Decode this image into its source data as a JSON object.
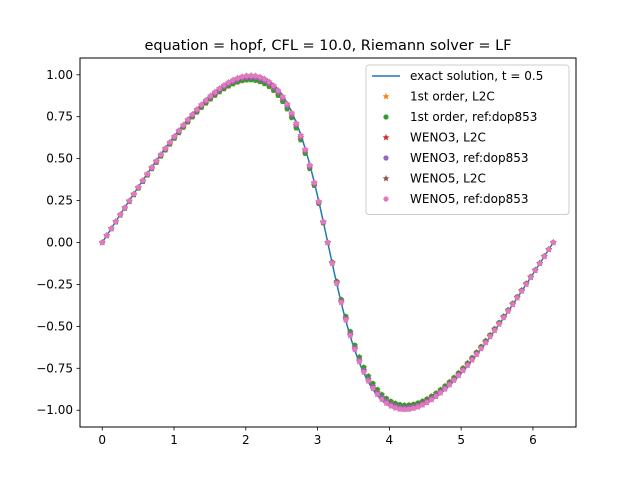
{
  "chart_data": {
    "type": "line",
    "title": "equation = hopf, CFL = 10.0, Riemann solver = LF",
    "xlabel": "",
    "ylabel": "",
    "xlim": [
      -0.31,
      6.6
    ],
    "ylim": [
      -1.1,
      1.1
    ],
    "x_ticks": [
      0,
      1,
      2,
      3,
      4,
      5,
      6
    ],
    "x_tick_labels": [
      "0",
      "1",
      "2",
      "3",
      "4",
      "5",
      "6"
    ],
    "y_ticks": [
      -1.0,
      -0.75,
      -0.5,
      -0.25,
      0.0,
      0.25,
      0.5,
      0.75,
      1.0
    ],
    "y_tick_labels": [
      "−1.00",
      "−0.75",
      "−0.50",
      "−0.25",
      "0.00",
      "0.25",
      "0.50",
      "0.75",
      "1.00"
    ],
    "grid": false,
    "legend_position": "top-right",
    "domain": [
      0,
      6.2832
    ],
    "samples": 100,
    "time": 0.5,
    "series": [
      {
        "name": "exact solution, t = 0.5",
        "kind": "line",
        "color": "#1f77b4",
        "peak": 1.0
      },
      {
        "name": "1st order, L2C",
        "kind": "marker",
        "marker": "star",
        "color": "#ff7f0e",
        "peak": 0.97
      },
      {
        "name": "1st order, ref:dop853",
        "kind": "marker",
        "marker": "dot",
        "color": "#2ca02c",
        "peak": 0.97
      },
      {
        "name": "WENO3, L2C",
        "kind": "marker",
        "marker": "star",
        "color": "#d62728",
        "peak": 0.985
      },
      {
        "name": "WENO3, ref:dop853",
        "kind": "marker",
        "marker": "dot",
        "color": "#9467bd",
        "peak": 0.985
      },
      {
        "name": "WENO5, L2C",
        "kind": "marker",
        "marker": "star",
        "color": "#8c564b",
        "peak": 0.995
      },
      {
        "name": "WENO5, ref:dop853",
        "kind": "marker",
        "marker": "dot",
        "color": "#e377c2",
        "peak": 0.995
      }
    ]
  }
}
